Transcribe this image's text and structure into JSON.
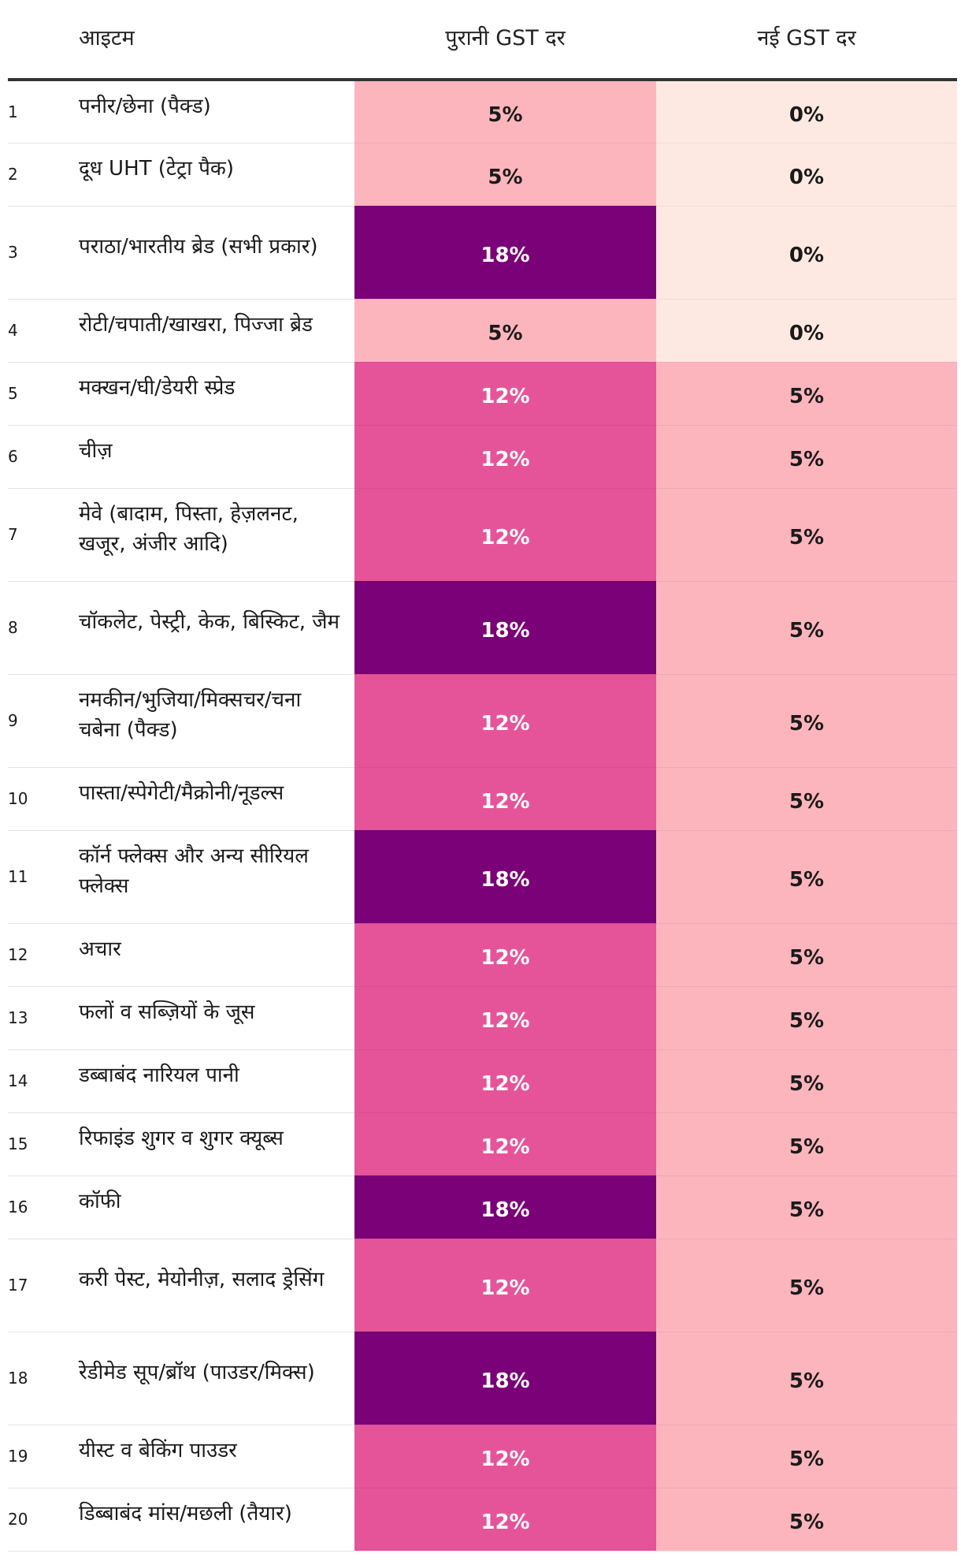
{
  "chart_data": {
    "type": "table",
    "columns": [
      "",
      "आइटम",
      "पुरानी GST दर",
      "नई GST दर"
    ],
    "colors": {
      "0%": "#fde9e1",
      "5%": "#fcb5bd",
      "12%": "#e55499",
      "18%": "#7a0177"
    },
    "text_colors": {
      "0%": "#1a1a1a",
      "5%": "#1a1a1a",
      "12%": "#ffffff",
      "18%": "#ffffff"
    },
    "rows": [
      {
        "num": "1",
        "item": "पनीर/छेना (पैक्ड)",
        "old": "5%",
        "new": "0%",
        "lines": 1
      },
      {
        "num": "2",
        "item": "दूध UHT (टेट्रा पैक)",
        "old": "5%",
        "new": "0%",
        "lines": 1
      },
      {
        "num": "3",
        "item": "पराठा/भारतीय ब्रेड (सभी प्रकार)",
        "old": "18%",
        "new": "0%",
        "lines": 2
      },
      {
        "num": "4",
        "item": "रोटी/चपाती/खाखरा, पिज्जा ब्रेड",
        "old": "5%",
        "new": "0%",
        "lines": 1
      },
      {
        "num": "5",
        "item": "मक्खन/घी/डेयरी स्प्रेड",
        "old": "12%",
        "new": "5%",
        "lines": 1
      },
      {
        "num": "6",
        "item": "चीज़",
        "old": "12%",
        "new": "5%",
        "lines": 1
      },
      {
        "num": "7",
        "item": "मेवे (बादाम, पिस्ता, हेज़लनट, खजूर, अंजीर आदि)",
        "old": "12%",
        "new": "5%",
        "lines": 2
      },
      {
        "num": "8",
        "item": "चॉकलेट, पेस्ट्री, केक, बिस्किट, जैम",
        "old": "18%",
        "new": "5%",
        "lines": 2
      },
      {
        "num": "9",
        "item": "नमकीन/भुजिया/मिक्सचर/चना चबेना (पैक्ड)",
        "old": "12%",
        "new": "5%",
        "lines": 2
      },
      {
        "num": "10",
        "item": "पास्ता/स्पेगेटी/मैक्रोनी/नूडल्स",
        "old": "12%",
        "new": "5%",
        "lines": 1
      },
      {
        "num": "11",
        "item": "कॉर्न फ्लेक्स और अन्य सीरियल फ्लेक्स",
        "old": "18%",
        "new": "5%",
        "lines": 2
      },
      {
        "num": "12",
        "item": "अचार",
        "old": "12%",
        "new": "5%",
        "lines": 1
      },
      {
        "num": "13",
        "item": "फलों व सब्ज़ियों के जूस",
        "old": "12%",
        "new": "5%",
        "lines": 1
      },
      {
        "num": "14",
        "item": "डब्बाबंद नारियल पानी",
        "old": "12%",
        "new": "5%",
        "lines": 1
      },
      {
        "num": "15",
        "item": "रिफाइंड शुगर व शुगर क्यूब्स",
        "old": "12%",
        "new": "5%",
        "lines": 1
      },
      {
        "num": "16",
        "item": "कॉफी",
        "old": "18%",
        "new": "5%",
        "lines": 1
      },
      {
        "num": "17",
        "item": "करी पेस्ट, मेयोनीज़, सलाद ड्रेसिंग",
        "old": "12%",
        "new": "5%",
        "lines": 2
      },
      {
        "num": "18",
        "item": "रेडीमेड सूप/ब्रॉथ (पाउडर/मिक्स)",
        "old": "18%",
        "new": "5%",
        "lines": 2
      },
      {
        "num": "19",
        "item": "यीस्ट व बेकिंग पाउडर",
        "old": "12%",
        "new": "5%",
        "lines": 1
      },
      {
        "num": "20",
        "item": "डिब्बाबंद मांस/मछली (तैयार)",
        "old": "12%",
        "new": "5%",
        "lines": 1
      }
    ]
  }
}
